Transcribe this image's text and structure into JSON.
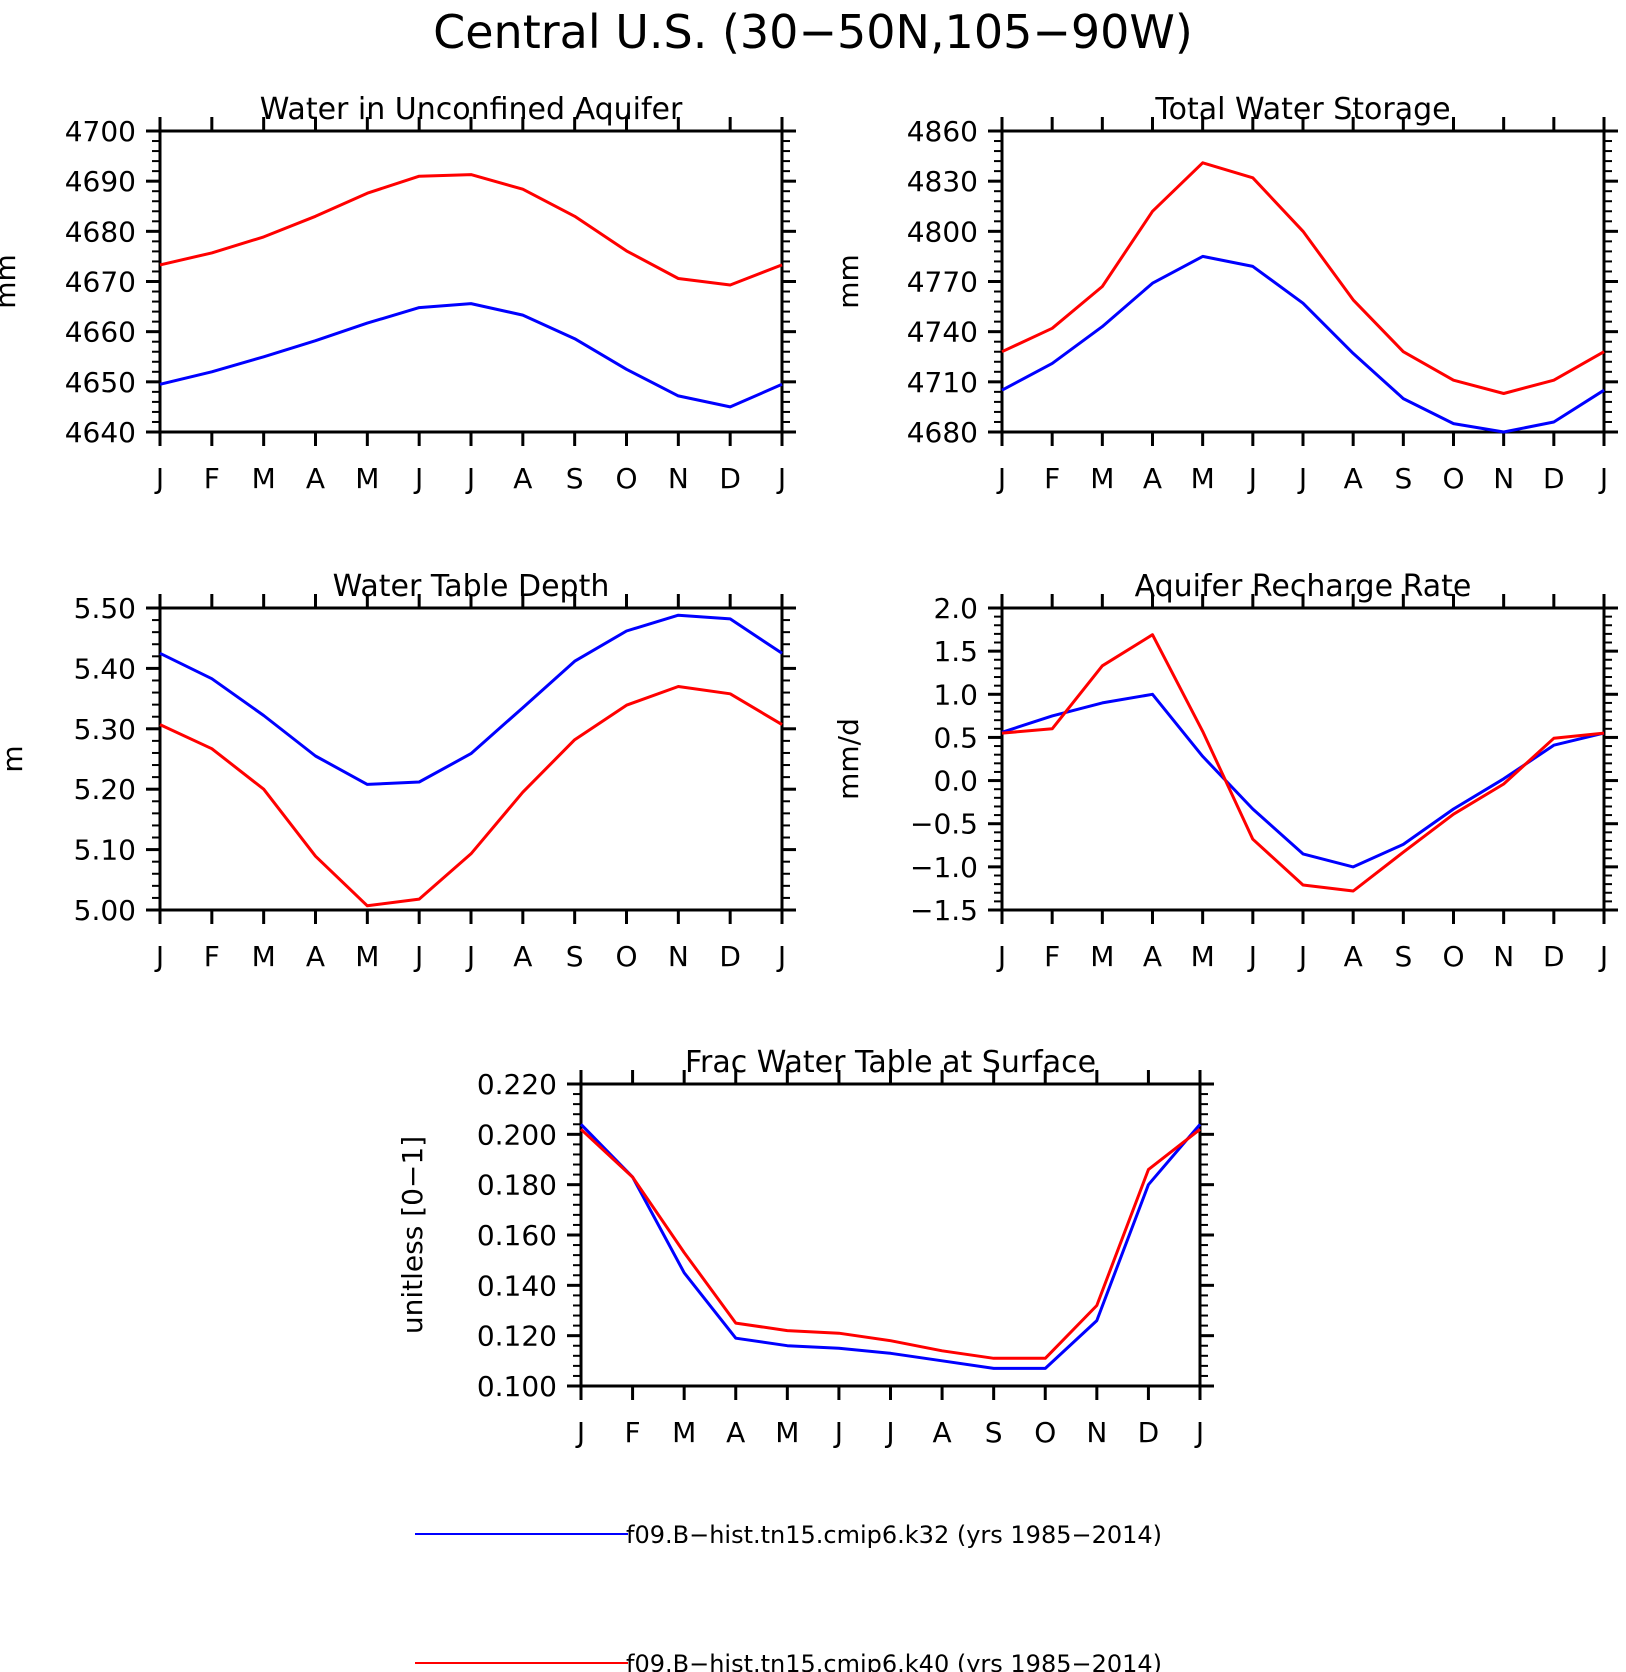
{
  "figure": {
    "title": "Central U.S. (30−50N,105−90W)"
  },
  "colors": {
    "k32": "#0000ff",
    "k40": "#ff0000"
  },
  "legend": [
    {
      "series_key": "k32",
      "label": "f09.B−hist.tn15.cmip6.k32 (yrs 1985−2014)"
    },
    {
      "series_key": "k40",
      "label": "f09.B−hist.tn15.cmip6.k40 (yrs 1985−2014)"
    }
  ],
  "chart_data": [
    {
      "type": "line",
      "title": "Water in Unconfined Aquifer",
      "ylabel": "mm",
      "xlabel": "",
      "categories": [
        "J",
        "F",
        "M",
        "A",
        "M",
        "J",
        "J",
        "A",
        "S",
        "O",
        "N",
        "D",
        "J"
      ],
      "ylim": [
        4640,
        4700
      ],
      "yticks": [
        4640,
        4650,
        4660,
        4670,
        4680,
        4690,
        4700
      ],
      "ytick_labels": [
        "4640",
        "4650",
        "4660",
        "4670",
        "4680",
        "4690",
        "4700"
      ],
      "grid": false,
      "series": [
        {
          "key": "k32",
          "values": [
            4649.5,
            4652,
            4655,
            4658.2,
            4661.7,
            4664.8,
            4665.6,
            4663.3,
            4658.6,
            4652.5,
            4647.2,
            4645,
            4649.5
          ]
        },
        {
          "key": "k40",
          "values": [
            4673.3,
            4675.7,
            4678.9,
            4683,
            4687.6,
            4691,
            4691.3,
            4688.4,
            4683,
            4676.1,
            4670.6,
            4669.3,
            4673.3
          ]
        }
      ]
    },
    {
      "type": "line",
      "title": "Total Water Storage",
      "ylabel": "mm",
      "xlabel": "",
      "categories": [
        "J",
        "F",
        "M",
        "A",
        "M",
        "J",
        "J",
        "A",
        "S",
        "O",
        "N",
        "D",
        "J"
      ],
      "ylim": [
        4680,
        4860
      ],
      "yticks": [
        4680,
        4710,
        4740,
        4770,
        4800,
        4830,
        4860
      ],
      "ytick_labels": [
        "4680",
        "4710",
        "4740",
        "4770",
        "4800",
        "4830",
        "4860"
      ],
      "grid": false,
      "series": [
        {
          "key": "k32",
          "values": [
            4705,
            4721,
            4743,
            4769,
            4785,
            4779,
            4757,
            4727,
            4700,
            4685,
            4680,
            4686,
            4705
          ]
        },
        {
          "key": "k40",
          "values": [
            4728,
            4742,
            4767,
            4812,
            4841,
            4832,
            4800,
            4759,
            4728,
            4711,
            4703,
            4711,
            4728
          ]
        }
      ]
    },
    {
      "type": "line",
      "title": "Water Table Depth",
      "ylabel": "m",
      "xlabel": "",
      "categories": [
        "J",
        "F",
        "M",
        "A",
        "M",
        "J",
        "J",
        "A",
        "S",
        "O",
        "N",
        "D",
        "J"
      ],
      "ylim": [
        5.0,
        5.5
      ],
      "yticks": [
        5.0,
        5.1,
        5.2,
        5.3,
        5.4,
        5.5
      ],
      "ytick_labels": [
        "5.00",
        "5.10",
        "5.20",
        "5.30",
        "5.40",
        "5.50"
      ],
      "grid": false,
      "series": [
        {
          "key": "k32",
          "values": [
            5.425,
            5.383,
            5.322,
            5.255,
            5.208,
            5.212,
            5.259,
            5.335,
            5.412,
            5.462,
            5.488,
            5.482,
            5.425
          ]
        },
        {
          "key": "k40",
          "values": [
            5.307,
            5.267,
            5.2,
            5.089,
            5.007,
            5.018,
            5.093,
            5.195,
            5.282,
            5.339,
            5.37,
            5.358,
            5.307
          ]
        }
      ]
    },
    {
      "type": "line",
      "title": "Aquifer Recharge Rate",
      "ylabel": "mm/d",
      "xlabel": "",
      "categories": [
        "J",
        "F",
        "M",
        "A",
        "M",
        "J",
        "J",
        "A",
        "S",
        "O",
        "N",
        "D",
        "J"
      ],
      "ylim": [
        -1.5,
        2.0
      ],
      "yticks": [
        -1.5,
        -1.0,
        -0.5,
        0.0,
        0.5,
        1.0,
        1.5,
        2.0
      ],
      "ytick_labels": [
        "−1.5",
        "−1.0",
        "−0.5",
        "0.0",
        "0.5",
        "1.0",
        "1.5",
        "2.0"
      ],
      "grid": false,
      "series": [
        {
          "key": "k32",
          "values": [
            0.56,
            0.75,
            0.9,
            1.0,
            0.28,
            -0.33,
            -0.85,
            -1.0,
            -0.74,
            -0.33,
            0.02,
            0.41,
            0.55
          ]
        },
        {
          "key": "k40",
          "values": [
            0.55,
            0.6,
            1.33,
            1.69,
            0.57,
            -0.68,
            -1.21,
            -1.28,
            -0.83,
            -0.39,
            -0.04,
            0.49,
            0.55
          ]
        }
      ]
    },
    {
      "type": "line",
      "title": "Frac Water Table at Surface",
      "ylabel": "unitless [0−1]",
      "xlabel": "",
      "categories": [
        "J",
        "F",
        "M",
        "A",
        "M",
        "J",
        "J",
        "A",
        "S",
        "O",
        "N",
        "D",
        "J"
      ],
      "ylim": [
        0.1,
        0.22
      ],
      "yticks": [
        0.1,
        0.12,
        0.14,
        0.16,
        0.18,
        0.2,
        0.22
      ],
      "ytick_labels": [
        "0.100",
        "0.120",
        "0.140",
        "0.160",
        "0.180",
        "0.200",
        "0.220"
      ],
      "grid": false,
      "series": [
        {
          "key": "k32",
          "values": [
            0.204,
            0.183,
            0.145,
            0.119,
            0.116,
            0.115,
            0.113,
            0.11,
            0.107,
            0.107,
            0.126,
            0.18,
            0.204
          ]
        },
        {
          "key": "k40",
          "values": [
            0.202,
            0.183,
            0.153,
            0.125,
            0.122,
            0.121,
            0.118,
            0.114,
            0.111,
            0.111,
            0.132,
            0.186,
            0.202
          ]
        }
      ]
    }
  ]
}
